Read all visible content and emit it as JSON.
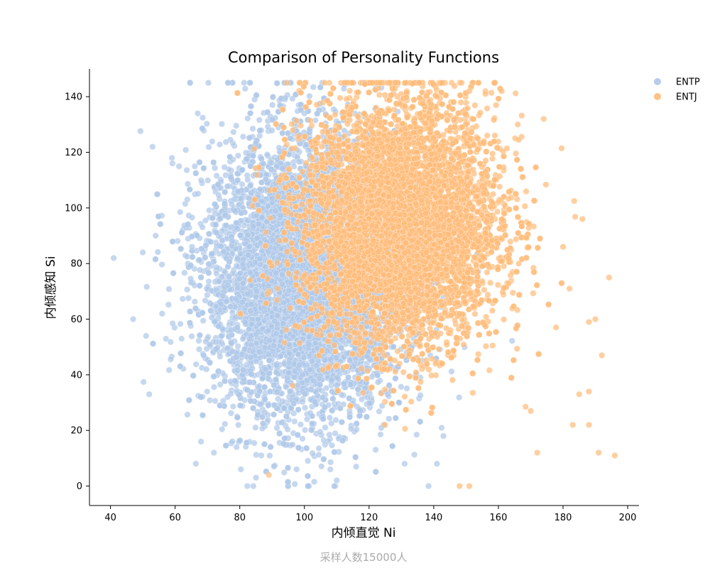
{
  "chart_data": {
    "type": "scatter",
    "title": "Comparison of Personality Functions",
    "xlabel": "内倾直觉 Ni",
    "ylabel": "内倾感知 Si",
    "note": "采样人数15000人",
    "xlim": [
      33.5,
      203.5
    ],
    "ylim": [
      -7,
      150
    ],
    "xticks": [
      "40",
      "60",
      "80",
      "100",
      "120",
      "140",
      "160",
      "180",
      "200"
    ],
    "yticks": [
      "0",
      "20",
      "40",
      "60",
      "80",
      "100",
      "120",
      "140"
    ],
    "grid": false,
    "legend_position": "top-right",
    "colors": {
      "ENTP": "#aec7e8",
      "ENTJ": "#ffbb78"
    },
    "series": [
      {
        "name": "ENTP",
        "distribution": {
          "x_mean": 100,
          "x_sd": 15,
          "y_mean": 75,
          "y_sd": 25,
          "count": 7500
        },
        "outliers": [
          [
            41,
            82
          ],
          [
            47,
            60
          ],
          [
            50,
            84
          ],
          [
            51,
            54
          ],
          [
            53,
            122
          ],
          [
            54,
            90
          ],
          [
            59,
            118
          ],
          [
            67,
            134
          ],
          [
            100,
            134
          ],
          [
            110,
            2
          ],
          [
            108,
            6
          ],
          [
            79,
            14
          ],
          [
            85,
            3
          ],
          [
            131,
            8
          ],
          [
            141,
            8
          ],
          [
            143,
            18
          ],
          [
            116,
            7
          ],
          [
            72,
            12
          ],
          [
            68,
            16
          ],
          [
            52,
            33
          ],
          [
            56,
            62
          ],
          [
            62,
            53
          ]
        ]
      },
      {
        "name": "ENTJ",
        "distribution": {
          "x_mean": 130,
          "x_sd": 15,
          "y_mean": 95,
          "y_sd": 22,
          "count": 7500
        },
        "outliers": [
          [
            128,
            143
          ],
          [
            151,
            142
          ],
          [
            156,
            142
          ],
          [
            161,
            142
          ],
          [
            156,
            141
          ],
          [
            141,
            140
          ],
          [
            174,
            132
          ],
          [
            166,
            130
          ],
          [
            186,
            96
          ],
          [
            196,
            11
          ],
          [
            191,
            12
          ],
          [
            172,
            12
          ],
          [
            148,
            0
          ],
          [
            151,
            0
          ],
          [
            89,
            4
          ],
          [
            188,
            22
          ],
          [
            183,
            22
          ],
          [
            192,
            47
          ],
          [
            190,
            60
          ],
          [
            188,
            59
          ],
          [
            182,
            71
          ],
          [
            180,
            86
          ],
          [
            185,
            33
          ],
          [
            188,
            34
          ],
          [
            170,
            27
          ]
        ]
      }
    ]
  }
}
